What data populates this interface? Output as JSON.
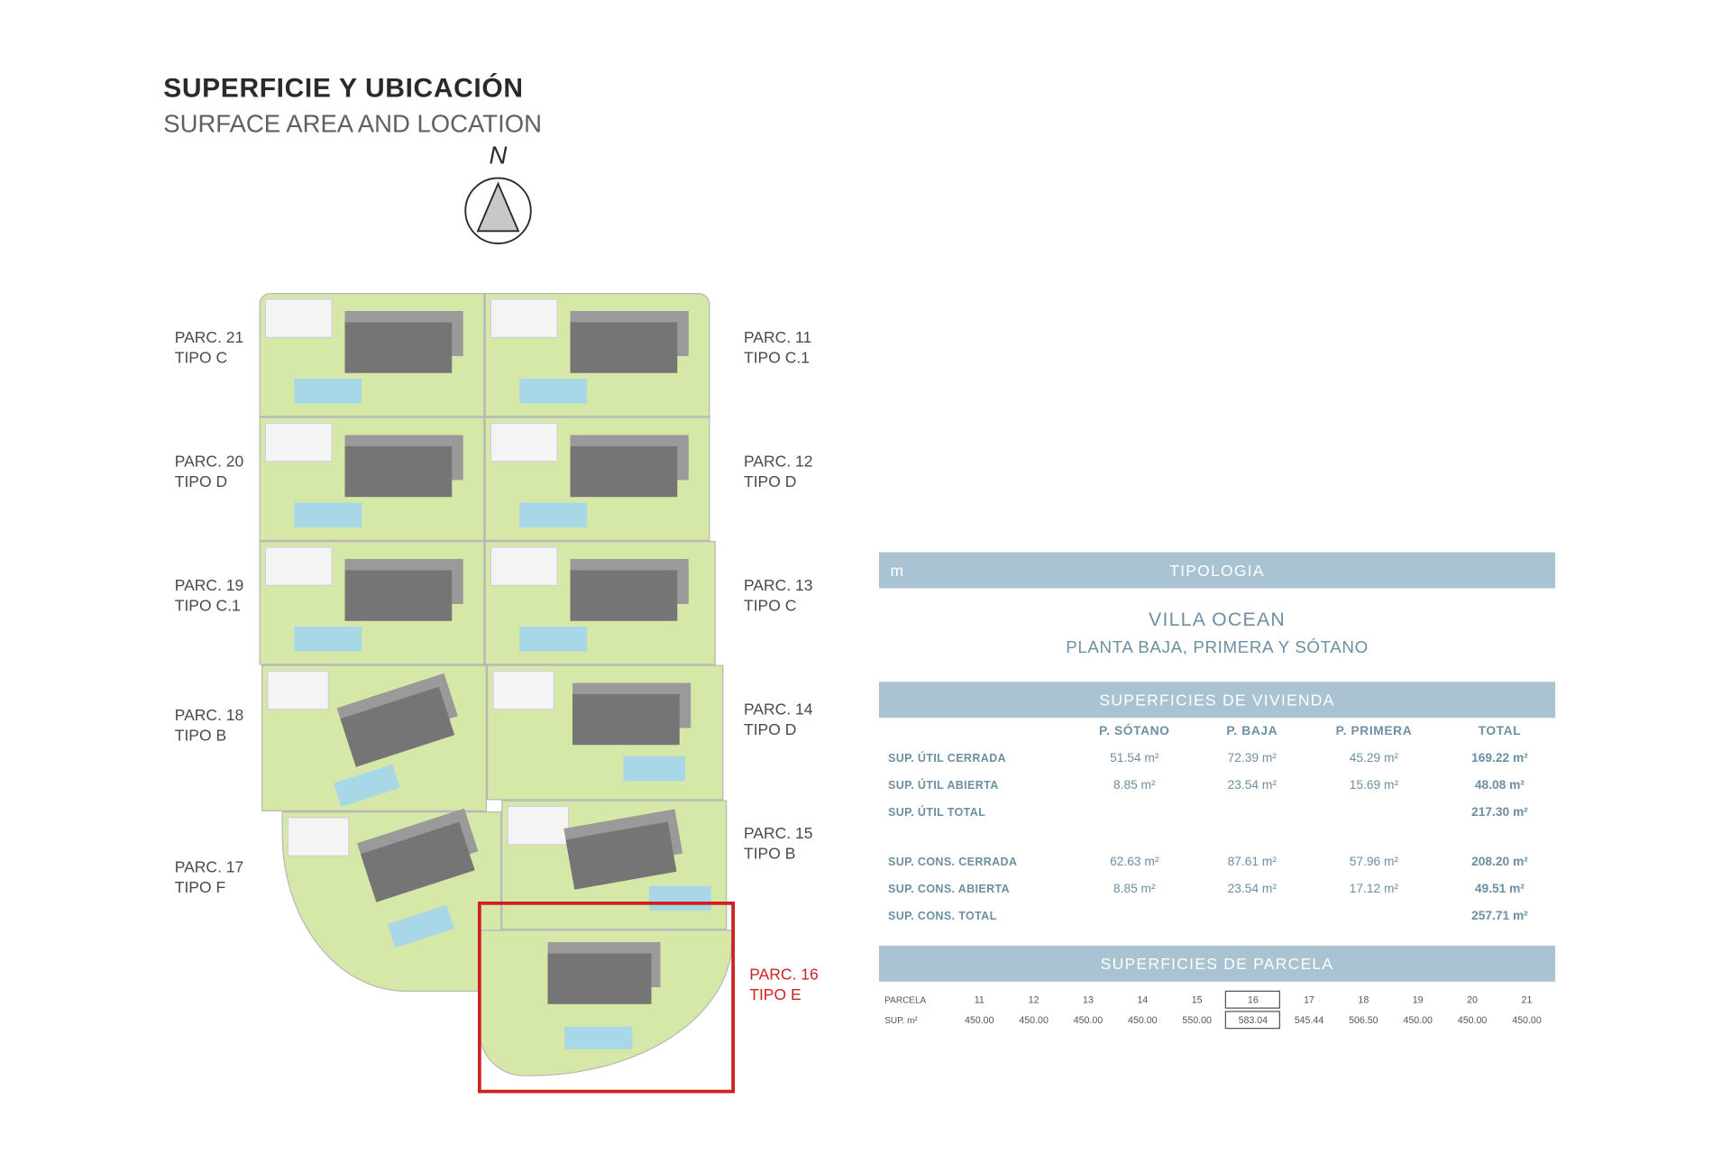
{
  "title": {
    "es": "SUPERFICIE Y UBICACIÓN",
    "en": "SURFACE AREA AND LOCATION"
  },
  "compass": {
    "label": "N",
    "triangle_fill": "#c8c8c8",
    "ring_stroke": "#2a2a2a"
  },
  "plan": {
    "background": "#d6e8a8",
    "lot_border": "#b8b8b8",
    "house_fill": "#757575",
    "roof_fill": "#9a9a9a",
    "pool_fill": "#a8d8e8",
    "highlight_color": "#d02020"
  },
  "labels": {
    "left": [
      {
        "parc": "PARC. 21",
        "tipo": "TIPO C"
      },
      {
        "parc": "PARC. 20",
        "tipo": "TIPO D"
      },
      {
        "parc": "PARC. 19",
        "tipo": "TIPO C.1"
      },
      {
        "parc": "PARC. 18",
        "tipo": "TIPO B"
      },
      {
        "parc": "PARC. 17",
        "tipo": "TIPO F"
      }
    ],
    "right": [
      {
        "parc": "PARC. 11",
        "tipo": "TIPO C.1"
      },
      {
        "parc": "PARC. 12",
        "tipo": "TIPO D"
      },
      {
        "parc": "PARC. 13",
        "tipo": "TIPO C"
      },
      {
        "parc": "PARC. 14",
        "tipo": "TIPO D"
      },
      {
        "parc": "PARC. 15",
        "tipo": "TIPO B"
      },
      {
        "parc": "PARC. 16",
        "tipo": "TIPO E"
      }
    ]
  },
  "panel": {
    "header_bg": "#a9c3d2",
    "header_fg": "#ffffff",
    "text_color": "#6d8fa3",
    "tipologia": {
      "header": "TIPOLOGIA",
      "m": "m",
      "line1": "VILLA OCEAN",
      "line2": "PLANTA BAJA, PRIMERA Y SÓTANO"
    },
    "vivienda": {
      "header": "SUPERFICIES DE VIVIENDA",
      "cols": [
        "P. SÓTANO",
        "P. BAJA",
        "P. PRIMERA",
        "TOTAL"
      ],
      "rows_a": [
        {
          "label": "SUP. ÚTIL CERRADA",
          "v": [
            "51.54 m²",
            "72.39 m²",
            "45.29 m²",
            "169.22 m²"
          ]
        },
        {
          "label": "SUP. ÚTIL ABIERTA",
          "v": [
            "8.85 m²",
            "23.54 m²",
            "15.69 m²",
            "48.08 m²"
          ]
        },
        {
          "label": "SUP. ÚTIL TOTAL",
          "v": [
            "",
            "",
            "",
            "217.30 m²"
          ]
        }
      ],
      "rows_b": [
        {
          "label": "SUP. CONS. CERRADA",
          "v": [
            "62.63 m²",
            "87.61 m²",
            "57.96 m²",
            "208.20 m²"
          ]
        },
        {
          "label": "SUP. CONS. ABIERTA",
          "v": [
            "8.85 m²",
            "23.54 m²",
            "17.12 m²",
            "49.51 m²"
          ]
        },
        {
          "label": "SUP. CONS. TOTAL",
          "v": [
            "",
            "",
            "",
            "257.71 m²"
          ]
        }
      ]
    },
    "parcela": {
      "header": "SUPERFICIES DE PARCELA",
      "row_labels": [
        "PARCELA",
        "SUP. m²"
      ],
      "cols": [
        "11",
        "12",
        "13",
        "14",
        "15",
        "16",
        "17",
        "18",
        "19",
        "20",
        "21"
      ],
      "vals": [
        "450.00",
        "450.00",
        "450.00",
        "450.00",
        "550.00",
        "583.04",
        "545.44",
        "506.50",
        "450.00",
        "450.00",
        "450.00"
      ],
      "highlight_index": 5
    }
  }
}
